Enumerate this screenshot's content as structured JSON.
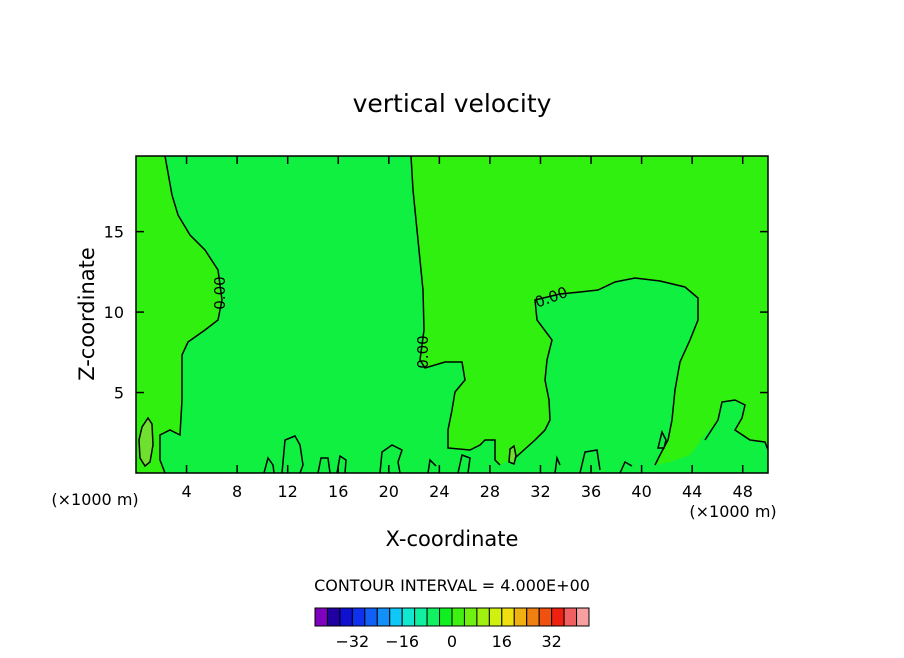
{
  "title": "vertical velocity",
  "chart_data": {
    "type": "heatmap",
    "title": "vertical velocity",
    "xlabel": "X-coordinate",
    "ylabel": "Z-coordinate",
    "x_unit": "(×1000 m)",
    "x_unit_right": "(×1000 m)",
    "xlim": [
      0,
      50
    ],
    "ylim": [
      0,
      19.7
    ],
    "x_ticks": [
      4,
      8,
      12,
      16,
      20,
      24,
      28,
      32,
      36,
      40,
      44,
      48
    ],
    "y_ticks": [
      5,
      10,
      15
    ],
    "contour_labels": [
      "0.00",
      "0.00",
      "0.00"
    ],
    "contour_interval_text": "CONTOUR INTERVAL = 4.000E+00",
    "colorbar": {
      "ticks": [
        -32,
        -16,
        0,
        16,
        32
      ],
      "tick_labels": [
        "−32",
        "−16",
        "0",
        "16",
        "32"
      ],
      "colors": [
        "#8000c0",
        "#2000a0",
        "#1010d0",
        "#1030f0",
        "#1060f8",
        "#1090f8",
        "#10c8f8",
        "#10e8d0",
        "#10f0a0",
        "#10f060",
        "#10f020",
        "#40f010",
        "#70f010",
        "#a0f010",
        "#d0f010",
        "#f0e010",
        "#f0b010",
        "#f08010",
        "#f05010",
        "#f02010",
        "#f06060",
        "#f8a0a0"
      ]
    },
    "fill_colors": {
      "background": "#30f010",
      "near_zero": "#10f040",
      "weak_positive": "#70e030"
    }
  }
}
